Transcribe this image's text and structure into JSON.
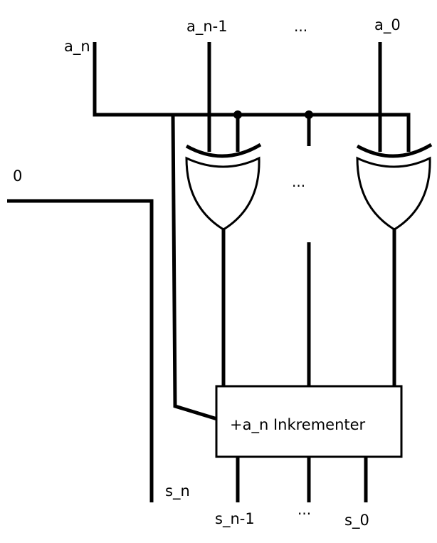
{
  "labels": {
    "a_n": "a_n",
    "a_n_minus_1": "a_n-1",
    "a_dots": "...",
    "a_0": "a_0",
    "zero": "0",
    "gate_dots": "...",
    "incrementer": "+a_n Inkrementer",
    "s_n": "s_n",
    "s_n_minus_1": "s_n-1",
    "s_dots": "...",
    "s_0": "s_0"
  },
  "components": [
    "xor-gate",
    "xor-gate",
    "incrementer-box"
  ]
}
